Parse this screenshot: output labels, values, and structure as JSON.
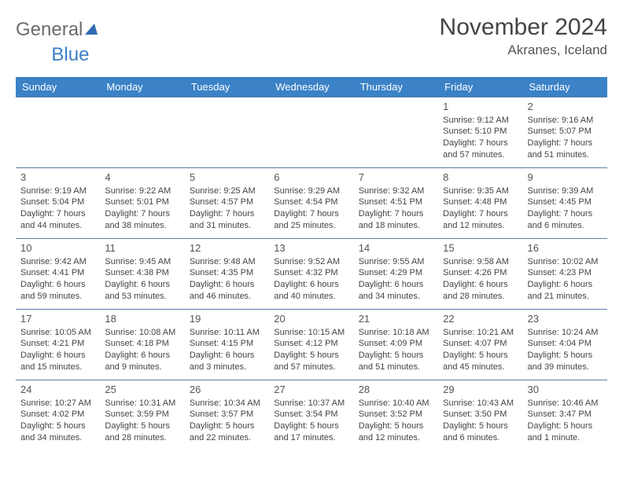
{
  "brand": {
    "word1": "General",
    "word2": "Blue"
  },
  "title": "November 2024",
  "location": "Akranes, Iceland",
  "header_bg": "#3b82c7",
  "header_fg": "#ffffff",
  "border_color": "#5a7fa8",
  "text_color": "#444444",
  "day_headers": [
    "Sunday",
    "Monday",
    "Tuesday",
    "Wednesday",
    "Thursday",
    "Friday",
    "Saturday"
  ],
  "weeks": [
    [
      null,
      null,
      null,
      null,
      null,
      {
        "n": "1",
        "sr": "Sunrise: 9:12 AM",
        "ss": "Sunset: 5:10 PM",
        "d1": "Daylight: 7 hours",
        "d2": "and 57 minutes."
      },
      {
        "n": "2",
        "sr": "Sunrise: 9:16 AM",
        "ss": "Sunset: 5:07 PM",
        "d1": "Daylight: 7 hours",
        "d2": "and 51 minutes."
      }
    ],
    [
      {
        "n": "3",
        "sr": "Sunrise: 9:19 AM",
        "ss": "Sunset: 5:04 PM",
        "d1": "Daylight: 7 hours",
        "d2": "and 44 minutes."
      },
      {
        "n": "4",
        "sr": "Sunrise: 9:22 AM",
        "ss": "Sunset: 5:01 PM",
        "d1": "Daylight: 7 hours",
        "d2": "and 38 minutes."
      },
      {
        "n": "5",
        "sr": "Sunrise: 9:25 AM",
        "ss": "Sunset: 4:57 PM",
        "d1": "Daylight: 7 hours",
        "d2": "and 31 minutes."
      },
      {
        "n": "6",
        "sr": "Sunrise: 9:29 AM",
        "ss": "Sunset: 4:54 PM",
        "d1": "Daylight: 7 hours",
        "d2": "and 25 minutes."
      },
      {
        "n": "7",
        "sr": "Sunrise: 9:32 AM",
        "ss": "Sunset: 4:51 PM",
        "d1": "Daylight: 7 hours",
        "d2": "and 18 minutes."
      },
      {
        "n": "8",
        "sr": "Sunrise: 9:35 AM",
        "ss": "Sunset: 4:48 PM",
        "d1": "Daylight: 7 hours",
        "d2": "and 12 minutes."
      },
      {
        "n": "9",
        "sr": "Sunrise: 9:39 AM",
        "ss": "Sunset: 4:45 PM",
        "d1": "Daylight: 7 hours",
        "d2": "and 6 minutes."
      }
    ],
    [
      {
        "n": "10",
        "sr": "Sunrise: 9:42 AM",
        "ss": "Sunset: 4:41 PM",
        "d1": "Daylight: 6 hours",
        "d2": "and 59 minutes."
      },
      {
        "n": "11",
        "sr": "Sunrise: 9:45 AM",
        "ss": "Sunset: 4:38 PM",
        "d1": "Daylight: 6 hours",
        "d2": "and 53 minutes."
      },
      {
        "n": "12",
        "sr": "Sunrise: 9:48 AM",
        "ss": "Sunset: 4:35 PM",
        "d1": "Daylight: 6 hours",
        "d2": "and 46 minutes."
      },
      {
        "n": "13",
        "sr": "Sunrise: 9:52 AM",
        "ss": "Sunset: 4:32 PM",
        "d1": "Daylight: 6 hours",
        "d2": "and 40 minutes."
      },
      {
        "n": "14",
        "sr": "Sunrise: 9:55 AM",
        "ss": "Sunset: 4:29 PM",
        "d1": "Daylight: 6 hours",
        "d2": "and 34 minutes."
      },
      {
        "n": "15",
        "sr": "Sunrise: 9:58 AM",
        "ss": "Sunset: 4:26 PM",
        "d1": "Daylight: 6 hours",
        "d2": "and 28 minutes."
      },
      {
        "n": "16",
        "sr": "Sunrise: 10:02 AM",
        "ss": "Sunset: 4:23 PM",
        "d1": "Daylight: 6 hours",
        "d2": "and 21 minutes."
      }
    ],
    [
      {
        "n": "17",
        "sr": "Sunrise: 10:05 AM",
        "ss": "Sunset: 4:21 PM",
        "d1": "Daylight: 6 hours",
        "d2": "and 15 minutes."
      },
      {
        "n": "18",
        "sr": "Sunrise: 10:08 AM",
        "ss": "Sunset: 4:18 PM",
        "d1": "Daylight: 6 hours",
        "d2": "and 9 minutes."
      },
      {
        "n": "19",
        "sr": "Sunrise: 10:11 AM",
        "ss": "Sunset: 4:15 PM",
        "d1": "Daylight: 6 hours",
        "d2": "and 3 minutes."
      },
      {
        "n": "20",
        "sr": "Sunrise: 10:15 AM",
        "ss": "Sunset: 4:12 PM",
        "d1": "Daylight: 5 hours",
        "d2": "and 57 minutes."
      },
      {
        "n": "21",
        "sr": "Sunrise: 10:18 AM",
        "ss": "Sunset: 4:09 PM",
        "d1": "Daylight: 5 hours",
        "d2": "and 51 minutes."
      },
      {
        "n": "22",
        "sr": "Sunrise: 10:21 AM",
        "ss": "Sunset: 4:07 PM",
        "d1": "Daylight: 5 hours",
        "d2": "and 45 minutes."
      },
      {
        "n": "23",
        "sr": "Sunrise: 10:24 AM",
        "ss": "Sunset: 4:04 PM",
        "d1": "Daylight: 5 hours",
        "d2": "and 39 minutes."
      }
    ],
    [
      {
        "n": "24",
        "sr": "Sunrise: 10:27 AM",
        "ss": "Sunset: 4:02 PM",
        "d1": "Daylight: 5 hours",
        "d2": "and 34 minutes."
      },
      {
        "n": "25",
        "sr": "Sunrise: 10:31 AM",
        "ss": "Sunset: 3:59 PM",
        "d1": "Daylight: 5 hours",
        "d2": "and 28 minutes."
      },
      {
        "n": "26",
        "sr": "Sunrise: 10:34 AM",
        "ss": "Sunset: 3:57 PM",
        "d1": "Daylight: 5 hours",
        "d2": "and 22 minutes."
      },
      {
        "n": "27",
        "sr": "Sunrise: 10:37 AM",
        "ss": "Sunset: 3:54 PM",
        "d1": "Daylight: 5 hours",
        "d2": "and 17 minutes."
      },
      {
        "n": "28",
        "sr": "Sunrise: 10:40 AM",
        "ss": "Sunset: 3:52 PM",
        "d1": "Daylight: 5 hours",
        "d2": "and 12 minutes."
      },
      {
        "n": "29",
        "sr": "Sunrise: 10:43 AM",
        "ss": "Sunset: 3:50 PM",
        "d1": "Daylight: 5 hours",
        "d2": "and 6 minutes."
      },
      {
        "n": "30",
        "sr": "Sunrise: 10:46 AM",
        "ss": "Sunset: 3:47 PM",
        "d1": "Daylight: 5 hours",
        "d2": "and 1 minute."
      }
    ]
  ]
}
